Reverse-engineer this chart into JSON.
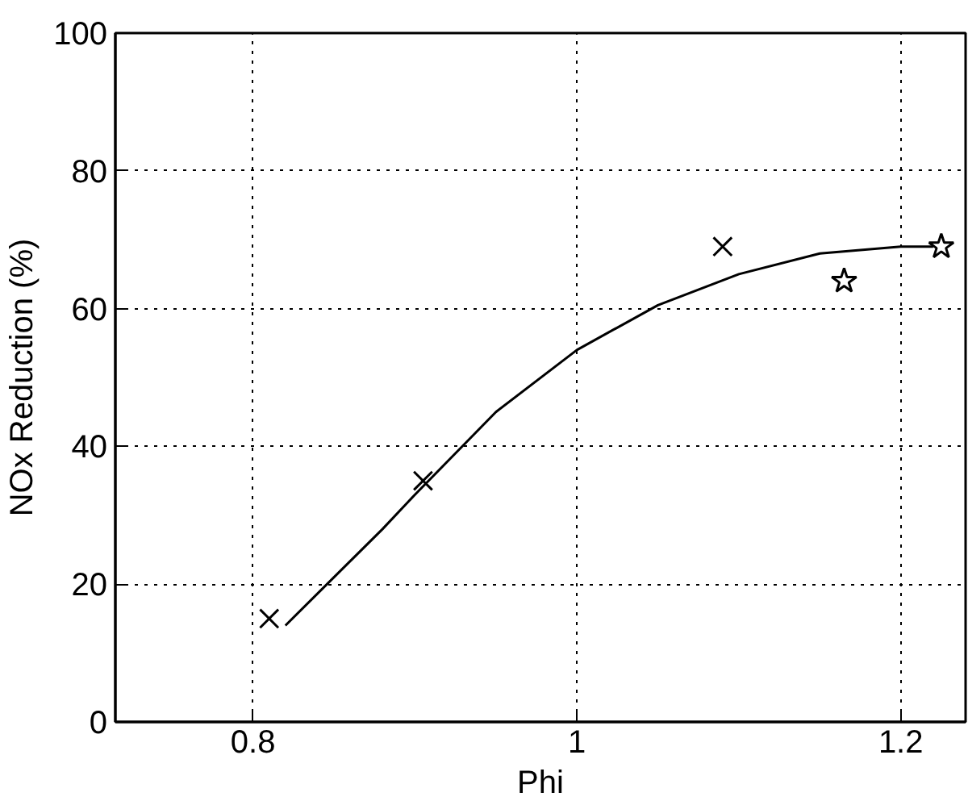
{
  "chart_data": {
    "type": "scatter",
    "xlabel": "Phi",
    "ylabel": "NOx Reduction (%)",
    "xlim": [
      0.715,
      1.24
    ],
    "ylim": [
      0,
      100
    ],
    "xticks": [
      0.8,
      1,
      1.2
    ],
    "yticks": [
      0,
      20,
      40,
      60,
      80,
      100
    ],
    "grid": true,
    "series": [
      {
        "marker": "cross",
        "color": "#000000",
        "x": [
          0.81,
          0.905,
          1.09
        ],
        "values": [
          15,
          35,
          69
        ]
      },
      {
        "marker": "star",
        "color": "#000000",
        "x": [
          1.165,
          1.225
        ],
        "values": [
          64,
          69
        ]
      },
      {
        "type": "line",
        "marker": "none",
        "color": "#000000",
        "x": [
          0.82,
          0.85,
          0.88,
          0.9,
          0.95,
          1.0,
          1.05,
          1.1,
          1.15,
          1.2,
          1.22
        ],
        "values": [
          14,
          21,
          28,
          33,
          45,
          54,
          60.5,
          65,
          68,
          69,
          69
        ]
      }
    ]
  }
}
